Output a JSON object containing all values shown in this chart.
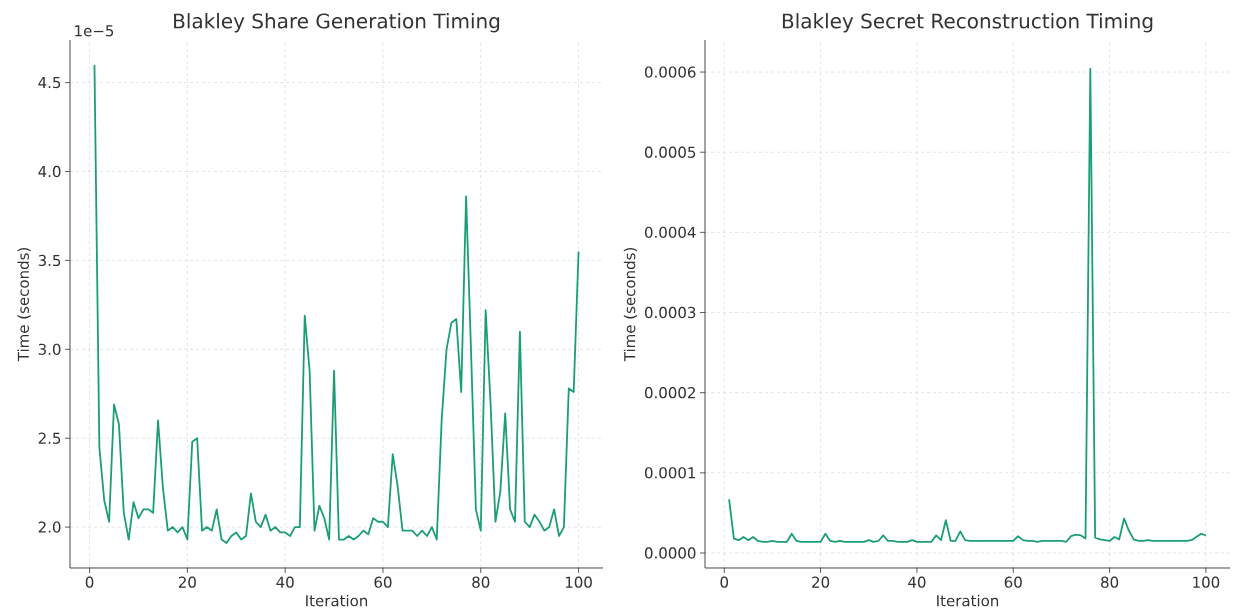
{
  "chart_data": [
    {
      "type": "line",
      "title": "Blakley Share Generation Timing",
      "xlabel": "Iteration",
      "ylabel": "Time (seconds)",
      "annotations": [
        "1e−5"
      ],
      "x": [
        1,
        2,
        3,
        4,
        5,
        6,
        7,
        8,
        9,
        10,
        11,
        12,
        13,
        14,
        15,
        16,
        17,
        18,
        19,
        20,
        21,
        22,
        23,
        24,
        25,
        26,
        27,
        28,
        29,
        30,
        31,
        32,
        33,
        34,
        35,
        36,
        37,
        38,
        39,
        40,
        41,
        42,
        43,
        44,
        45,
        46,
        47,
        48,
        49,
        50,
        51,
        52,
        53,
        54,
        55,
        56,
        57,
        58,
        59,
        60,
        61,
        62,
        63,
        64,
        65,
        66,
        67,
        68,
        69,
        70,
        71,
        72,
        73,
        74,
        75,
        76,
        77,
        78,
        79,
        80,
        81,
        82,
        83,
        84,
        85,
        86,
        87,
        88,
        89,
        90,
        91,
        92,
        93,
        94,
        95,
        96,
        97,
        98,
        99,
        100
      ],
      "series": [
        {
          "color": "#1b9e77",
          "values": [
            4.6,
            2.45,
            2.15,
            2.03,
            2.69,
            2.58,
            2.08,
            1.93,
            2.14,
            2.05,
            2.1,
            2.1,
            2.08,
            2.6,
            2.22,
            1.98,
            2.0,
            1.97,
            2.0,
            1.93,
            2.48,
            2.5,
            1.98,
            2.0,
            1.98,
            2.1,
            1.93,
            1.91,
            1.95,
            1.97,
            1.93,
            1.95,
            2.19,
            2.03,
            2.0,
            2.07,
            1.98,
            2.0,
            1.97,
            1.97,
            1.95,
            2.0,
            2.0,
            3.19,
            2.88,
            1.98,
            2.12,
            2.05,
            1.93,
            2.88,
            1.93,
            1.93,
            1.95,
            1.93,
            1.95,
            1.98,
            1.96,
            2.05,
            2.03,
            2.03,
            2.0,
            2.41,
            2.23,
            1.98,
            1.98,
            1.98,
            1.95,
            1.98,
            1.95,
            2.0,
            1.93,
            2.6,
            3.0,
            3.15,
            3.17,
            2.76,
            3.86,
            3.0,
            2.1,
            1.98,
            3.22,
            2.7,
            2.03,
            2.2,
            2.64,
            2.1,
            2.03,
            3.1,
            2.03,
            2.0,
            2.07,
            2.03,
            1.98,
            2.0,
            2.1,
            1.95,
            2.0,
            2.78,
            2.76,
            3.55
          ]
        }
      ],
      "xlim": [
        -4,
        105
      ],
      "xticks": [
        0,
        20,
        40,
        60,
        80,
        100
      ],
      "ylim": [
        1.77,
        4.74
      ],
      "yticks": [
        {
          "value": 2.0,
          "label": "2.0"
        },
        {
          "value": 2.5,
          "label": "2.5"
        },
        {
          "value": 3.0,
          "label": "3.0"
        },
        {
          "value": 3.5,
          "label": "3.5"
        },
        {
          "value": 4.0,
          "label": "4.0"
        },
        {
          "value": 4.5,
          "label": "4.5"
        }
      ],
      "grid": true,
      "marker": "none",
      "line_style": "solid"
    },
    {
      "type": "line",
      "title": "Blakley Secret Reconstruction Timing",
      "xlabel": "Iteration",
      "ylabel": "Time (seconds)",
      "x": [
        1,
        2,
        3,
        4,
        5,
        6,
        7,
        8,
        9,
        10,
        11,
        12,
        13,
        14,
        15,
        16,
        17,
        18,
        19,
        20,
        21,
        22,
        23,
        24,
        25,
        26,
        27,
        28,
        29,
        30,
        31,
        32,
        33,
        34,
        35,
        36,
        37,
        38,
        39,
        40,
        41,
        42,
        43,
        44,
        45,
        46,
        47,
        48,
        49,
        50,
        51,
        52,
        53,
        54,
        55,
        56,
        57,
        58,
        59,
        60,
        61,
        62,
        63,
        64,
        65,
        66,
        67,
        68,
        69,
        70,
        71,
        72,
        73,
        74,
        75,
        76,
        77,
        78,
        79,
        80,
        81,
        82,
        83,
        84,
        85,
        86,
        87,
        88,
        89,
        90,
        91,
        92,
        93,
        94,
        95,
        96,
        97,
        98,
        99,
        100
      ],
      "series": [
        {
          "color": "#1b9e77",
          "values": [
            6.7e-05,
            1.8e-05,
            1.6e-05,
            2e-05,
            1.6e-05,
            2e-05,
            1.5e-05,
            1.4e-05,
            1.4e-05,
            1.5e-05,
            1.4e-05,
            1.4e-05,
            1.4e-05,
            2.4e-05,
            1.5e-05,
            1.4e-05,
            1.4e-05,
            1.4e-05,
            1.4e-05,
            1.4e-05,
            2.4e-05,
            1.5e-05,
            1.4e-05,
            1.5e-05,
            1.4e-05,
            1.4e-05,
            1.4e-05,
            1.4e-05,
            1.4e-05,
            1.6e-05,
            1.4e-05,
            1.5e-05,
            2.2e-05,
            1.5e-05,
            1.5e-05,
            1.4e-05,
            1.4e-05,
            1.4e-05,
            1.6e-05,
            1.4e-05,
            1.4e-05,
            1.4e-05,
            1.4e-05,
            2.2e-05,
            1.6e-05,
            4.1e-05,
            1.5e-05,
            1.5e-05,
            2.7e-05,
            1.6e-05,
            1.5e-05,
            1.5e-05,
            1.5e-05,
            1.5e-05,
            1.5e-05,
            1.5e-05,
            1.5e-05,
            1.5e-05,
            1.5e-05,
            1.5e-05,
            2.1e-05,
            1.6e-05,
            1.5e-05,
            1.5e-05,
            1.4e-05,
            1.5e-05,
            1.5e-05,
            1.5e-05,
            1.5e-05,
            1.5e-05,
            1.4e-05,
            2.1e-05,
            2.3e-05,
            2.2e-05,
            1.8e-05,
            0.000604,
            1.9e-05,
            1.7e-05,
            1.6e-05,
            1.5e-05,
            2e-05,
            1.7e-05,
            4.3e-05,
            2.8e-05,
            1.7e-05,
            1.5e-05,
            1.5e-05,
            1.6e-05,
            1.5e-05,
            1.5e-05,
            1.5e-05,
            1.5e-05,
            1.5e-05,
            1.5e-05,
            1.5e-05,
            1.5e-05,
            1.6e-05,
            2e-05,
            2.4e-05,
            2.2e-05
          ]
        }
      ],
      "xlim": [
        -4,
        105
      ],
      "xticks": [
        0,
        20,
        40,
        60,
        80,
        100
      ],
      "ylim": [
        -1.87e-05,
        0.00064
      ],
      "yticks": [
        {
          "value": 0,
          "label": "0.0000"
        },
        {
          "value": 0.0001,
          "label": "0.0001"
        },
        {
          "value": 0.0002,
          "label": "0.0002"
        },
        {
          "value": 0.0003,
          "label": "0.0003"
        },
        {
          "value": 0.0004,
          "label": "0.0004"
        },
        {
          "value": 0.0005,
          "label": "0.0005"
        },
        {
          "value": 0.0006,
          "label": "0.0006"
        }
      ],
      "grid": true,
      "marker": "none",
      "line_style": "solid"
    }
  ]
}
